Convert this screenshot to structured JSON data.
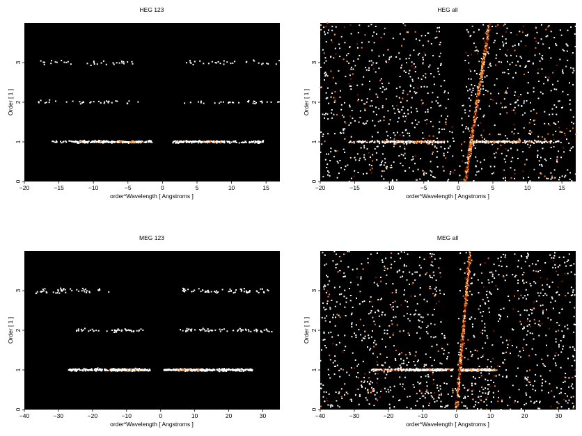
{
  "figure": {
    "colors": {
      "background": "#000000",
      "low": "#8b1a00",
      "mid": "#ff7a10",
      "high": "#ffd28a",
      "max": "#ffffff"
    }
  },
  "chart_data": [
    {
      "type": "scatter",
      "title": "HEG 123",
      "xlabel": "order*Wavelength [ Angstroms ]",
      "ylabel": "Order [ 1 ]",
      "xlim": [
        -20,
        17
      ],
      "ylim": [
        0,
        4
      ],
      "xticks": [
        -20,
        -15,
        -10,
        -5,
        0,
        5,
        10,
        15
      ],
      "yticks": [
        0,
        1,
        2,
        3
      ],
      "grid": false,
      "point_color": "#ffffff",
      "clusters": [
        {
          "order": 1,
          "x_ranges": [
            [
              -16,
              -1.5
            ],
            [
              1.5,
              15
            ]
          ],
          "core_ranges": [
            [
              -12,
              -2
            ],
            [
              2,
              9
            ]
          ],
          "spread": 0.03
        },
        {
          "order": 2,
          "x_ranges": [
            [
              -18,
              -3
            ],
            [
              3,
              17
            ]
          ],
          "spread": 0.04
        },
        {
          "order": 3,
          "x_ranges": [
            [
              -18,
              -3
            ],
            [
              3,
              17
            ]
          ],
          "spread": 0.06
        }
      ]
    },
    {
      "type": "scatter",
      "title": "HEG all",
      "xlabel": "order*Wavelength [ Angstroms ]",
      "ylabel": "Order [ 1 ]",
      "xlim": [
        -20,
        17
      ],
      "ylim": [
        0,
        4
      ],
      "xticks": [
        -20,
        -15,
        -10,
        -5,
        0,
        5,
        10,
        15
      ],
      "yticks": [
        0,
        1,
        2,
        3
      ],
      "grid": false,
      "point_color": "#ffffff",
      "clusters": [
        {
          "order": 1,
          "x_ranges": [
            [
              -16,
              -1.5
            ],
            [
              1.5,
              15
            ]
          ],
          "core_ranges": [
            [
              -11,
              -2
            ],
            [
              2,
              9
            ]
          ],
          "spread": 0.03
        },
        {
          "order": 0.35,
          "x_ranges": [
            [
              -13,
              -7
            ]
          ],
          "spread": 0.12
        },
        {
          "order": 1.2,
          "x_ranges": [
            [
              -9,
              -7
            ]
          ],
          "spread": 0.1
        }
      ],
      "zeroth_order_streak": {
        "x_at_bottom": 1.0,
        "x_at_top": 4.5
      },
      "background_density": "high",
      "wedge_gap": {
        "x_left_at_top": -2.5,
        "x_right_at_top": 1.2
      }
    },
    {
      "type": "scatter",
      "title": "MEG 123",
      "xlabel": "order*Wavelength [ Angstroms ]",
      "ylabel": "Order [ 1 ]",
      "xlim": [
        -40,
        35
      ],
      "ylim": [
        0,
        4
      ],
      "xticks": [
        -40,
        -30,
        -20,
        -10,
        0,
        10,
        20,
        30
      ],
      "yticks": [
        0,
        1,
        2,
        3
      ],
      "grid": false,
      "point_color": "#ffffff",
      "clusters": [
        {
          "order": 1,
          "x_ranges": [
            [
              -27,
              -3
            ],
            [
              3,
              27
            ]
          ],
          "core_ranges": [
            [
              -15,
              -5
            ],
            [
              1,
              12
            ]
          ],
          "spread": 0.03
        },
        {
          "order": 2,
          "x_ranges": [
            [
              -26,
              -5
            ],
            [
              5,
              33
            ]
          ],
          "spread": 0.04
        },
        {
          "order": 3,
          "x_ranges": [
            [
              -37,
              -15
            ],
            [
              6,
              33
            ]
          ],
          "spread": 0.06
        }
      ]
    },
    {
      "type": "scatter",
      "title": "MEG all",
      "xlabel": "order*Wavelength [ Angstroms ]",
      "ylabel": "Order [ 1 ]",
      "xlim": [
        -40,
        35
      ],
      "ylim": [
        0,
        4
      ],
      "xticks": [
        -40,
        -30,
        -20,
        -10,
        0,
        10,
        20,
        30
      ],
      "yticks": [
        0,
        1,
        2,
        3
      ],
      "grid": false,
      "point_color": "#ffffff",
      "clusters": [
        {
          "order": 1,
          "x_ranges": [
            [
              -25,
              -1
            ],
            [
              1,
              12
            ]
          ],
          "core_ranges": [
            [
              -14,
              -3
            ],
            [
              1,
              11
            ]
          ],
          "spread": 0.03
        },
        {
          "order": 0.5,
          "x_ranges": [
            [
              -27,
              -18
            ]
          ],
          "spread": 0.12
        },
        {
          "order": 0.4,
          "x_ranges": [
            [
              -12,
              10
            ]
          ],
          "spread": 0.3
        }
      ],
      "zeroth_order_streak": {
        "x_at_bottom": 0.0,
        "x_at_top": 4.0
      },
      "background_density": "high",
      "wedge_gap": {
        "x_left_at_top": -5,
        "x_right_at_top": 1
      }
    }
  ]
}
